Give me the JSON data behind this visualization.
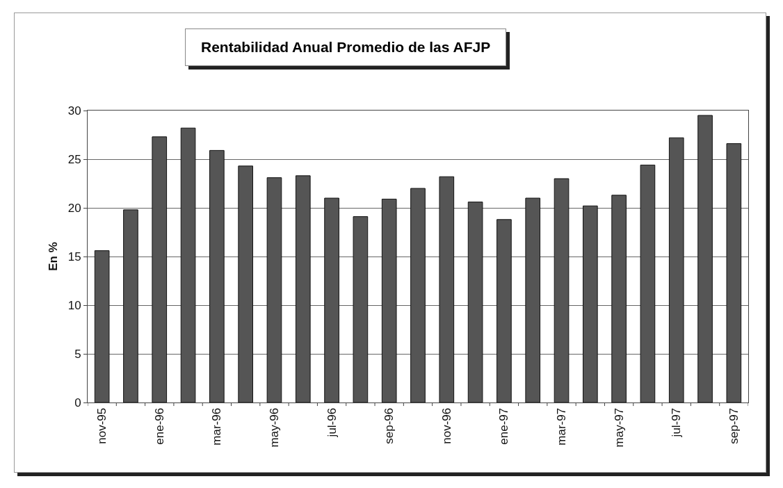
{
  "chart_data": {
    "type": "bar",
    "title": "Rentabilidad Anual Promedio de las AFJP",
    "ylabel": "En %",
    "categories": [
      "nov-95",
      null,
      "ene-96",
      null,
      "mar-96",
      null,
      "may-96",
      null,
      "jul-96",
      null,
      "sep-96",
      null,
      "nov-96",
      null,
      "ene-97",
      null,
      "mar-97",
      null,
      "may-97",
      null,
      "jul-97",
      null,
      "sep-97"
    ],
    "values": [
      15.6,
      19.8,
      27.3,
      28.2,
      25.9,
      24.3,
      23.1,
      23.3,
      21.0,
      19.1,
      20.9,
      22.0,
      23.2,
      20.6,
      18.8,
      21.0,
      23.0,
      20.2,
      21.3,
      24.4,
      27.2,
      29.5,
      26.6
    ],
    "color": "#555555",
    "ylim": [
      0,
      30
    ],
    "yticks": [
      0,
      5,
      10,
      15,
      20,
      25,
      30
    ],
    "grid": "y"
  }
}
